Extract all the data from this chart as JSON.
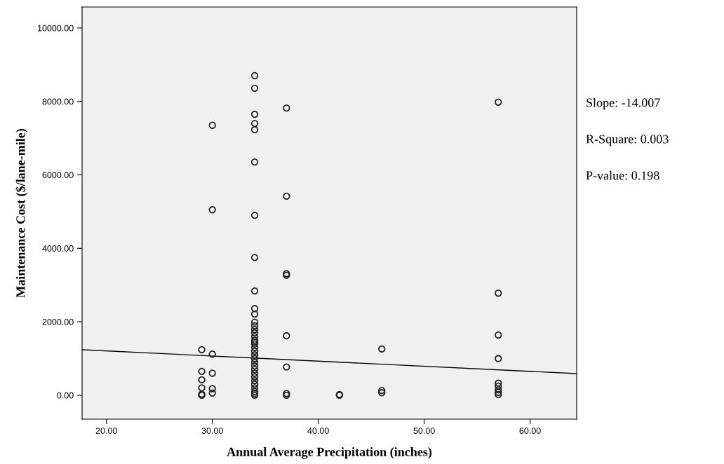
{
  "chart_data": {
    "type": "scatter",
    "xlabel": "Annual Average Precipitation (inches)",
    "ylabel": "Maintenance Cost ($/lane-mile)",
    "xlim": [
      17.7,
      64.4
    ],
    "ylim": [
      -650,
      10570
    ],
    "xticks": [
      {
        "value": 20,
        "label": "20.00"
      },
      {
        "value": 30,
        "label": "30.00"
      },
      {
        "value": 40,
        "label": "40.00"
      },
      {
        "value": 50,
        "label": "50.00"
      },
      {
        "value": 60,
        "label": "60.00"
      }
    ],
    "yticks": [
      {
        "value": 0,
        "label": "0.00"
      },
      {
        "value": 2000,
        "label": "2000.00"
      },
      {
        "value": 4000,
        "label": "4000.00"
      },
      {
        "value": 6000,
        "label": "6000.00"
      },
      {
        "value": 8000,
        "label": "8000.00"
      },
      {
        "value": 10000,
        "label": "10000.00"
      }
    ],
    "grid": false,
    "legend": false,
    "series": [
      {
        "marker": "circle",
        "color": "#222222",
        "x": [
          29,
          29,
          29,
          29,
          29,
          29,
          30,
          30,
          30,
          30,
          30,
          30,
          34,
          34,
          34,
          34,
          34,
          34,
          34,
          34,
          34,
          34,
          34,
          34,
          34,
          34,
          34,
          34,
          34,
          34,
          34,
          34,
          34,
          34,
          34,
          34,
          34,
          34,
          34,
          34,
          34,
          34,
          34,
          34,
          34,
          34,
          37,
          37,
          37,
          37,
          37,
          37,
          37,
          37,
          42,
          42,
          46,
          46,
          46,
          57,
          57,
          57,
          57,
          57,
          57,
          57,
          57,
          57
        ],
        "values": [
          1240,
          650,
          420,
          200,
          30,
          0,
          7350,
          5050,
          1120,
          600,
          180,
          60,
          8700,
          8360,
          7650,
          7400,
          7230,
          6350,
          4900,
          3750,
          2840,
          2360,
          2210,
          1990,
          1890,
          1790,
          1700,
          1600,
          1500,
          1450,
          1400,
          1300,
          1200,
          1100,
          1000,
          900,
          800,
          700,
          600,
          500,
          400,
          300,
          200,
          100,
          50,
          0,
          7820,
          5420,
          3310,
          3270,
          1620,
          770,
          50,
          0,
          20,
          0,
          1260,
          130,
          70,
          7980,
          2780,
          1640,
          1000,
          330,
          250,
          150,
          80,
          20
        ]
      },
      {
        "type": "line",
        "marker": "none",
        "color": "#000000",
        "line_style": "solid",
        "x": [
          17.7,
          64.4
        ],
        "values": [
          1240,
          590
        ]
      }
    ],
    "annotations": [
      "Slope: -14.007",
      "R-Square: 0.003",
      "P-value: 0.198"
    ]
  }
}
